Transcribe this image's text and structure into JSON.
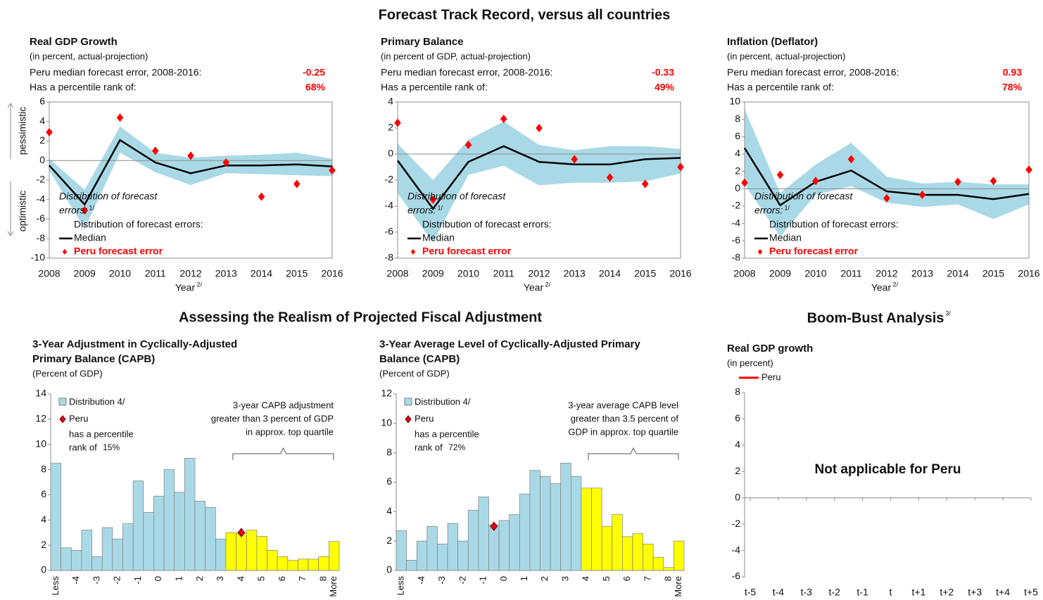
{
  "headings": [
    {
      "text": "Forecast Track Record, versus all countries"
    },
    {
      "text": "Assessing the Realism of Projected Fiscal Adjustment"
    },
    {
      "text": "Boom-Bust Analysis",
      "note": "3/"
    }
  ],
  "chart_data": [
    {
      "type": "line",
      "title": "Real GDP Growth",
      "subtitle": "(in percent, actual-projection)",
      "summary": [
        {
          "label": "Peru median forecast error, 2008-2016:",
          "value": "-0.25"
        },
        {
          "label": "Has a percentile rank of:",
          "value": "68%"
        }
      ],
      "x": [
        2008,
        2009,
        2010,
        2011,
        2012,
        2013,
        2014,
        2015,
        2016
      ],
      "xlim": [
        2008,
        2016
      ],
      "xlabel": "Year",
      "xlabel_note": "2/",
      "ylim": [
        -10,
        6
      ],
      "yticks": [
        -10,
        -8,
        -6,
        -4,
        -2,
        0,
        2,
        4,
        6
      ],
      "y_annotations": [
        "pessimistic",
        "optimistic"
      ],
      "annotation": {
        "lines": [
          "Distribution of forecast",
          "errors:"
        ],
        "note": "1/"
      },
      "band": {
        "name": "Distribution of forecast errors:",
        "color": "#a9d9e6",
        "low": [
          -1,
          -7,
          0.8,
          -1.2,
          -2.5,
          -1.3,
          -1.4,
          -1.5,
          -1.6
        ],
        "high": [
          0.2,
          -3,
          3.5,
          0.8,
          0.3,
          0.5,
          0.6,
          0.8,
          0.2
        ]
      },
      "series": [
        {
          "name": "Median",
          "color": "#000000",
          "values": [
            -0.5,
            -4.5,
            2.1,
            -0.2,
            -1.3,
            -0.5,
            -0.5,
            -0.4,
            -0.6
          ]
        },
        {
          "name": "Peru forecast error",
          "color": "#ff0000",
          "marker": "diamond",
          "values": [
            2.9,
            -5.1,
            4.4,
            1,
            0.5,
            -0.2,
            -3.7,
            -2.4,
            -1
          ]
        }
      ]
    },
    {
      "type": "line",
      "title": "Primary Balance",
      "subtitle": "(in percent of GDP, actual-projection)",
      "summary": [
        {
          "label": "Peru median forecast error, 2008-2016:",
          "value": "-0.33"
        },
        {
          "label": "Has a percentile rank of:",
          "value": "49%"
        }
      ],
      "x": [
        2008,
        2009,
        2010,
        2011,
        2012,
        2013,
        2014,
        2015,
        2016
      ],
      "xlim": [
        2008,
        2016
      ],
      "xlabel": "Year",
      "xlabel_note": "2/",
      "ylim": [
        -8,
        4
      ],
      "yticks": [
        -8,
        -6,
        -4,
        -2,
        0,
        2,
        4
      ],
      "annotation": {
        "lines": [
          "Distribution of forecast",
          "errors:"
        ],
        "note": "1/"
      },
      "band": {
        "name": "Distribution of forecast errors:",
        "color": "#a9d9e6",
        "low": [
          -3,
          -6.8,
          -1.6,
          -0.9,
          -2.4,
          -2.2,
          -2.2,
          -2.1,
          -1.5
        ],
        "high": [
          0.8,
          -2,
          1.1,
          2.5,
          0.7,
          0.3,
          0.6,
          0.6,
          0.4
        ]
      },
      "series": [
        {
          "name": "Median",
          "color": "#000000",
          "values": [
            -0.5,
            -4.2,
            -0.6,
            0.6,
            -0.6,
            -0.8,
            -0.8,
            -0.4,
            -0.3
          ]
        },
        {
          "name": "Peru forecast error",
          "color": "#ff0000",
          "marker": "diamond",
          "values": [
            2.4,
            -3.5,
            0.7,
            2.7,
            2.0,
            -0.4,
            -1.8,
            -2.3,
            -1
          ]
        }
      ]
    },
    {
      "type": "line",
      "title": "Inflation (Deflator)",
      "subtitle": "(in percent, actual-projection)",
      "summary": [
        {
          "label": "Peru median forecast error, 2008-2016:",
          "value": "0.93"
        },
        {
          "label": "Has a percentile rank of:",
          "value": "78%"
        }
      ],
      "x": [
        2008,
        2009,
        2010,
        2011,
        2012,
        2013,
        2014,
        2015,
        2016
      ],
      "xlim": [
        2008,
        2016
      ],
      "xlabel": "Year",
      "xlabel_note": "2/",
      "ylim": [
        -8,
        10
      ],
      "yticks": [
        -8,
        -6,
        -4,
        -2,
        0,
        2,
        4,
        6,
        8,
        10
      ],
      "annotation": {
        "lines": [
          "Distribution of forecast",
          "errors:"
        ],
        "note": "1/"
      },
      "band": {
        "name": "Distribution of forecast errors:",
        "color": "#a9d9e6",
        "low": [
          0.5,
          -5.5,
          -0.7,
          0.3,
          -1.6,
          -2.1,
          -1.8,
          -3.5,
          -1.8
        ],
        "high": [
          9.2,
          -0.5,
          2.8,
          5.3,
          1.4,
          0.6,
          0.8,
          0.5,
          0.5
        ]
      },
      "series": [
        {
          "name": "Median",
          "color": "#000000",
          "values": [
            4.7,
            -1.9,
            0.8,
            2.1,
            -0.3,
            -0.7,
            -0.7,
            -1.2,
            -0.6
          ]
        },
        {
          "name": "Peru forecast error",
          "color": "#ff0000",
          "marker": "diamond",
          "values": [
            0.7,
            1.6,
            0.9,
            3.4,
            -1.1,
            -0.7,
            0.8,
            0.9,
            2.2
          ]
        }
      ]
    },
    {
      "type": "bar",
      "title": [
        "3-Year Adjustment in Cyclically-Adjusted",
        "Primary Balance (CAPB)"
      ],
      "subtitle": "(Percent of GDP)",
      "x": [
        -5,
        -4.5,
        -4,
        -3.5,
        -3,
        -2.5,
        -2,
        -1.5,
        -1,
        -0.5,
        0,
        0.5,
        1,
        1.5,
        2,
        2.5,
        3,
        3.5,
        4,
        4.5,
        5,
        5.5,
        6,
        6.5,
        7,
        7.5,
        8,
        8.5
      ],
      "xlim": [
        -5.25,
        8.75
      ],
      "xticks": [
        {
          "value": -5,
          "label": "Less"
        },
        -4,
        -3,
        -2,
        -1,
        0,
        1,
        2,
        3,
        4,
        5,
        6,
        7,
        8,
        {
          "value": 8.5,
          "label": "More"
        }
      ],
      "ylim": [
        0,
        14
      ],
      "yticks": [
        0,
        2,
        4,
        6,
        8,
        10,
        12,
        14
      ],
      "series": [
        {
          "name": "Distribution 4/",
          "color": "#a9d9e6",
          "colors": [
            "#a9d9e6",
            "#a9d9e6",
            "#a9d9e6",
            "#a9d9e6",
            "#a9d9e6",
            "#a9d9e6",
            "#a9d9e6",
            "#a9d9e6",
            "#a9d9e6",
            "#a9d9e6",
            "#a9d9e6",
            "#a9d9e6",
            "#a9d9e6",
            "#a9d9e6",
            "#a9d9e6",
            "#a9d9e6",
            "#a9d9e6",
            "#ffff00",
            "#ffff00",
            "#ffff00",
            "#ffff00",
            "#ffff00",
            "#ffff00",
            "#ffff00",
            "#ffff00",
            "#ffff00",
            "#ffff00",
            "#ffff00"
          ],
          "values": [
            8.5,
            1.8,
            1.6,
            3.2,
            1.1,
            3.4,
            2.5,
            3.7,
            7.1,
            4.6,
            5.9,
            8.0,
            6.2,
            8.9,
            5.5,
            5.0,
            2.5,
            3.0,
            3.0,
            3.2,
            2.7,
            1.6,
            1.1,
            0.8,
            0.9,
            0.9,
            1.1,
            2.3
          ]
        }
      ],
      "peru": {
        "name": "Peru",
        "color": "#e3001b",
        "x": 4,
        "y": 3
      },
      "rank_lines": [
        "has a percentile",
        "rank of"
      ],
      "rank": "15%",
      "bracket_lines": [
        "3-year CAPB adjustment",
        "greater than 3 percent of GDP",
        "in approx. top quartile"
      ]
    },
    {
      "type": "bar",
      "title": [
        "3-Year Average Level of Cyclically-Adjusted Primary",
        "Balance (CAPB)"
      ],
      "subtitle": "(Percent of GDP)",
      "x": [
        -5,
        -4.5,
        -4,
        -3.5,
        -3,
        -2.5,
        -2,
        -1.5,
        -1,
        -0.5,
        0,
        0.5,
        1,
        1.5,
        2,
        2.5,
        3,
        3.5,
        4,
        4.5,
        5,
        5.5,
        6,
        6.5,
        7,
        7.5,
        8,
        8.5
      ],
      "xlim": [
        -5.25,
        8.75
      ],
      "xticks": [
        {
          "value": -5,
          "label": "Less"
        },
        -4,
        -3,
        -2,
        -1,
        0,
        1,
        2,
        3,
        4,
        5,
        6,
        7,
        8,
        {
          "value": 8.5,
          "label": "More"
        }
      ],
      "ylim": [
        0,
        12
      ],
      "yticks": [
        0,
        2,
        4,
        6,
        8,
        10,
        12
      ],
      "series": [
        {
          "name": "Distribution 4/",
          "color": "#a9d9e6",
          "colors": [
            "#a9d9e6",
            "#a9d9e6",
            "#a9d9e6",
            "#a9d9e6",
            "#a9d9e6",
            "#a9d9e6",
            "#a9d9e6",
            "#a9d9e6",
            "#a9d9e6",
            "#a9d9e6",
            "#a9d9e6",
            "#a9d9e6",
            "#a9d9e6",
            "#a9d9e6",
            "#a9d9e6",
            "#a9d9e6",
            "#a9d9e6",
            "#a9d9e6",
            "#ffff00",
            "#ffff00",
            "#ffff00",
            "#ffff00",
            "#ffff00",
            "#ffff00",
            "#ffff00",
            "#ffff00",
            "#ffff00",
            "#ffff00"
          ],
          "values": [
            2.7,
            0.7,
            2.0,
            3.0,
            1.8,
            3.2,
            2.0,
            4.1,
            5.0,
            3.1,
            3.4,
            3.8,
            5.2,
            6.8,
            6.4,
            5.9,
            7.3,
            6.4,
            5.6,
            5.6,
            3.0,
            3.8,
            2.3,
            2.5,
            1.8,
            0.9,
            0.2,
            2.0
          ]
        }
      ],
      "peru": {
        "name": "Peru",
        "color": "#e3001b",
        "x": -0.5,
        "y": 3
      },
      "rank_lines": [
        "has a percentile",
        "rank of"
      ],
      "rank": "72%",
      "bracket_lines": [
        "3-year average CAPB level",
        "greater than 3.5 percent of",
        "GDP in approx. top quartile"
      ]
    },
    {
      "type": "line",
      "title": "Real GDP growth",
      "subtitle": "(in percent)",
      "categories": [
        "t-5",
        "t-4",
        "t-3",
        "t-2",
        "t-1",
        "t",
        "t+1",
        "t+2",
        "t+3",
        "t+4",
        "t+5"
      ],
      "ylim": [
        -6,
        8
      ],
      "yticks": [
        -6,
        -4,
        -2,
        0,
        2,
        4,
        6,
        8
      ],
      "series": [
        {
          "name": "Peru",
          "color": "#ff0000",
          "values": [
            null,
            null,
            null,
            null,
            null,
            null,
            null,
            null,
            null,
            null,
            null
          ]
        }
      ],
      "annotation": "Not applicable for Peru"
    }
  ]
}
